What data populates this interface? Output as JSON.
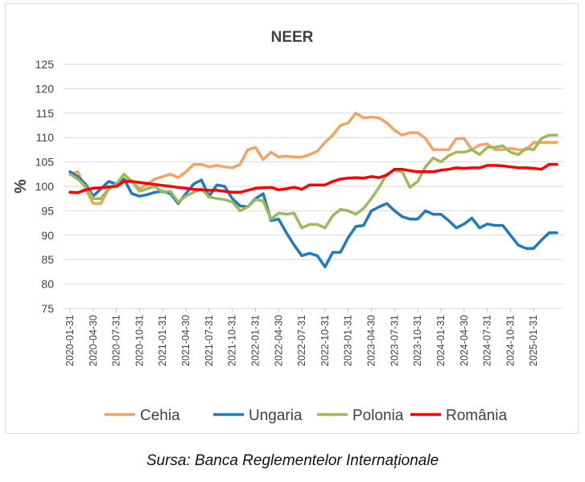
{
  "source": "Sursa: Banca Reglementelor Internaționale",
  "chart_data": {
    "type": "line",
    "title": "NEER",
    "xlabel": "",
    "ylabel": "%",
    "ylim": [
      75,
      125
    ],
    "yticks": [
      75,
      80,
      85,
      90,
      95,
      100,
      105,
      110,
      115,
      120,
      125
    ],
    "grid": true,
    "legend_position": "bottom",
    "x_tick_labels": [
      "2020-01-31",
      "2020-04-30",
      "2020-07-31",
      "2020-10-31",
      "2021-01-31",
      "2021-04-30",
      "2021-07-31",
      "2021-10-31",
      "2022-01-31",
      "2022-04-30",
      "2022-07-31",
      "2022-10-31",
      "2023-01-31",
      "2023-04-30",
      "2023-07-31",
      "2023-10-31",
      "2024-01-31",
      "2024-04-30",
      "2024-07-31",
      "2024-10-31",
      "2025-01-31"
    ],
    "x": [
      "2020-01",
      "2020-02",
      "2020-03",
      "2020-04",
      "2020-05",
      "2020-06",
      "2020-07",
      "2020-08",
      "2020-09",
      "2020-10",
      "2020-11",
      "2020-12",
      "2021-01",
      "2021-02",
      "2021-03",
      "2021-04",
      "2021-05",
      "2021-06",
      "2021-07",
      "2021-08",
      "2021-09",
      "2021-10",
      "2021-11",
      "2021-12",
      "2022-01",
      "2022-02",
      "2022-03",
      "2022-04",
      "2022-05",
      "2022-06",
      "2022-07",
      "2022-08",
      "2022-09",
      "2022-10",
      "2022-11",
      "2022-12",
      "2023-01",
      "2023-02",
      "2023-03",
      "2023-04",
      "2023-05",
      "2023-06",
      "2023-07",
      "2023-08",
      "2023-09",
      "2023-10",
      "2023-11",
      "2023-12",
      "2024-01",
      "2024-02",
      "2024-03",
      "2024-04",
      "2024-05",
      "2024-06",
      "2024-07",
      "2024-08",
      "2024-09",
      "2024-10",
      "2024-11",
      "2024-12",
      "2025-01",
      "2025-02",
      "2025-03",
      "2025-04"
    ],
    "series": [
      {
        "name": "Cehia",
        "color": "#f4a460",
        "values": [
          102.5,
          103.0,
          99.5,
          96.5,
          96.5,
          99.5,
          100.5,
          101.5,
          101.0,
          99.5,
          100.5,
          101.5,
          102.0,
          102.5,
          101.8,
          103.0,
          104.5,
          104.5,
          104.0,
          104.3,
          104.0,
          103.8,
          104.5,
          107.5,
          108.0,
          105.5,
          107.0,
          106.0,
          106.2,
          106.0,
          106.0,
          106.5,
          107.2,
          109.0,
          110.5,
          112.5,
          113.0,
          115.0,
          114.0,
          114.2,
          114.0,
          113.0,
          111.5,
          110.5,
          111.0,
          111.0,
          109.8,
          107.5,
          107.5,
          107.5,
          109.8,
          109.8,
          107.5,
          108.5,
          108.7,
          107.5,
          107.5,
          107.8,
          107.5,
          107.5,
          109.0,
          109.0,
          109.0,
          109.0
        ]
      },
      {
        "name": "Ungaria",
        "color": "#1f7bc1",
        "values": [
          103.0,
          102.0,
          100.5,
          98.0,
          99.5,
          101.0,
          100.5,
          101.5,
          98.5,
          98.0,
          98.3,
          98.8,
          99.0,
          98.5,
          96.5,
          98.5,
          100.5,
          101.3,
          98.0,
          100.3,
          100.0,
          97.5,
          96.0,
          95.8,
          97.5,
          98.5,
          93.0,
          93.3,
          90.5,
          88.0,
          85.8,
          86.3,
          85.8,
          83.5,
          86.5,
          86.5,
          89.5,
          91.8,
          92.0,
          95.0,
          95.8,
          96.5,
          95.0,
          93.8,
          93.3,
          93.3,
          95.0,
          94.3,
          94.3,
          93.0,
          91.5,
          92.3,
          93.5,
          91.5,
          92.3,
          92.0,
          92.0,
          90.0,
          88.0,
          87.3,
          87.3,
          89.0,
          90.5,
          90.5
        ]
      },
      {
        "name": "Polonia",
        "color": "#9bbb59",
        "values": [
          102.5,
          101.5,
          100.0,
          97.5,
          97.5,
          99.5,
          100.5,
          102.5,
          101.0,
          99.0,
          99.5,
          100.0,
          98.8,
          99.0,
          96.8,
          98.0,
          98.8,
          99.5,
          97.8,
          97.5,
          97.3,
          96.8,
          95.0,
          95.8,
          97.3,
          97.0,
          93.3,
          94.5,
          94.3,
          94.5,
          91.5,
          92.2,
          92.2,
          91.5,
          94.0,
          95.3,
          95.0,
          94.3,
          95.5,
          97.5,
          99.8,
          102.5,
          103.3,
          103.0,
          99.8,
          101.0,
          104.0,
          105.8,
          105.0,
          106.3,
          107.0,
          107.0,
          107.5,
          106.5,
          108.0,
          108.0,
          108.3,
          107.0,
          106.5,
          107.8,
          107.5,
          109.8,
          110.5,
          110.5
        ]
      },
      {
        "name": "România",
        "color": "#ff0000",
        "values": [
          98.8,
          98.7,
          99.3,
          99.6,
          99.7,
          99.9,
          100.0,
          101.0,
          101.0,
          100.8,
          100.6,
          100.4,
          100.2,
          100.0,
          99.8,
          99.6,
          99.4,
          99.3,
          99.2,
          99.2,
          99.0,
          98.8,
          98.8,
          99.2,
          99.6,
          99.7,
          99.8,
          99.3,
          99.5,
          99.8,
          99.4,
          100.3,
          100.3,
          100.3,
          101.0,
          101.5,
          101.7,
          101.8,
          101.7,
          102.0,
          101.8,
          102.3,
          103.5,
          103.5,
          103.2,
          103.0,
          103.0,
          103.0,
          103.3,
          103.5,
          103.8,
          103.7,
          103.8,
          103.8,
          104.3,
          104.3,
          104.2,
          104.0,
          103.8,
          103.8,
          103.7,
          103.5,
          104.5,
          104.5
        ]
      }
    ]
  }
}
